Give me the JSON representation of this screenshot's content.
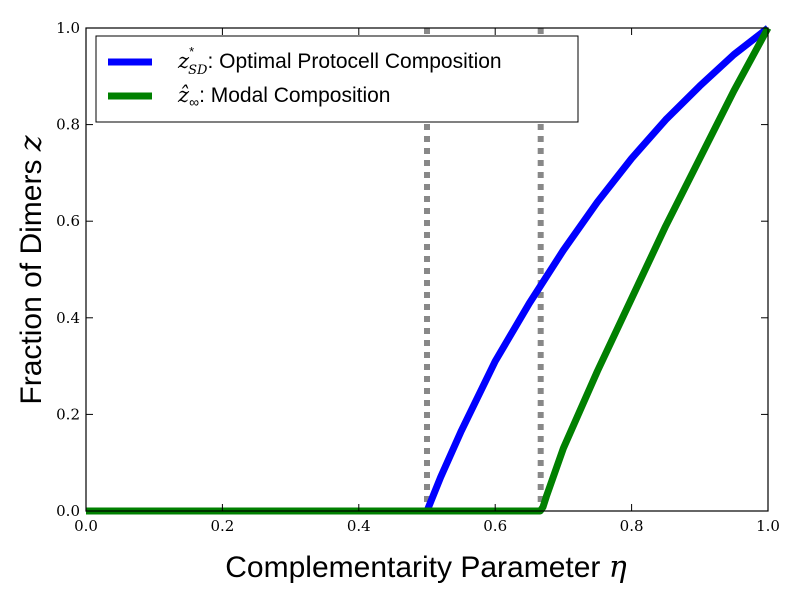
{
  "chart_data": {
    "type": "line",
    "xlabel": "Complementarity Parameter",
    "xlabel_symbol": "η",
    "ylabel": "Fraction of Dimers",
    "ylabel_symbol": "z",
    "xlim": [
      0.0,
      1.0
    ],
    "ylim": [
      0.0,
      1.0
    ],
    "x_ticks": [
      "0.0",
      "0.2",
      "0.4",
      "0.6",
      "0.8",
      "1.0"
    ],
    "y_ticks": [
      "0.0",
      "0.2",
      "0.4",
      "0.6",
      "0.8",
      "1.0"
    ],
    "grid": false,
    "legend_position": "top-left",
    "series": [
      {
        "legend_symbol": "z",
        "legend_superscript": "*",
        "legend_subscript": "SD",
        "legend_text": ": Optimal Protocell Composition",
        "color": "#0000ff",
        "x": [
          0.0,
          0.5,
          0.52,
          0.55,
          0.6,
          0.65,
          0.7,
          0.75,
          0.8,
          0.85,
          0.9,
          0.95,
          1.0
        ],
        "y": [
          0.0,
          0.0,
          0.07,
          0.165,
          0.31,
          0.43,
          0.54,
          0.64,
          0.73,
          0.81,
          0.88,
          0.945,
          1.0
        ]
      },
      {
        "legend_symbol": "ẑ",
        "legend_subscript": "∞",
        "legend_text": ": Modal Composition",
        "color": "#008000",
        "x": [
          0.0,
          0.666,
          0.67,
          0.675,
          0.7,
          0.75,
          0.8,
          0.85,
          0.9,
          0.95,
          1.0
        ],
        "y": [
          0.0,
          0.0,
          0.008,
          0.03,
          0.13,
          0.29,
          0.44,
          0.59,
          0.73,
          0.87,
          1.0
        ]
      }
    ],
    "vlines": [
      {
        "x": 0.5,
        "color": "#888888",
        "style": "dotted"
      },
      {
        "x": 0.6667,
        "color": "#888888",
        "style": "dotted"
      }
    ]
  }
}
